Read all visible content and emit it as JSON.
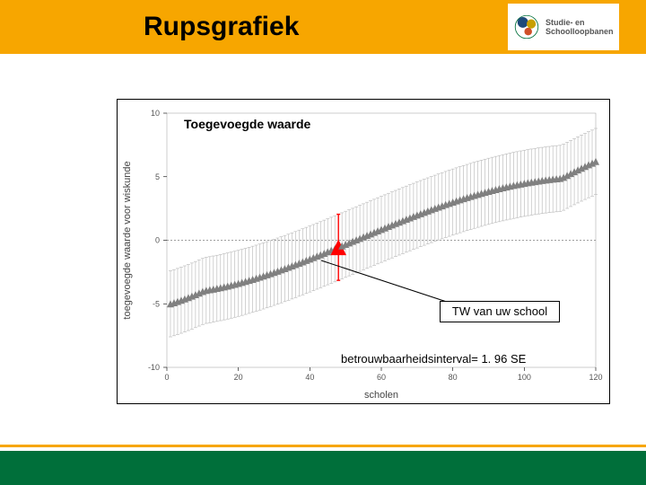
{
  "header": {
    "title": "Rupsgrafiek",
    "logo_line1": "Studie- en",
    "logo_line2": "Schoolloopbanen",
    "bar_color": "#f7a600"
  },
  "chart": {
    "type": "caterpillar-errorbar",
    "inner_title": "Toegevoegde waarde",
    "xlabel": "scholen",
    "ylabel": "toegevoegde waarde voor wiskunde",
    "xlim": [
      0,
      120
    ],
    "ylim": [
      -10,
      10
    ],
    "xtick_step": 20,
    "ytick_step": 5,
    "axis_label_fontsize": 11,
    "tick_fontsize": 9,
    "n_points": 120,
    "point_color": "#808080",
    "errorbar_color": "#bfbfbf",
    "highlight_index": 47,
    "highlight_color": "#ff0000",
    "zero_line_color": "#808080",
    "marker": "triangle",
    "marker_size": 4,
    "errorbar_halfwidth": 2.6,
    "background_color": "#ffffff",
    "border_color": "#000000"
  },
  "annotations": {
    "tw_box": "TW van uw school",
    "interval": "betrouwbaarheidsinterval= 1. 96 SE"
  },
  "footer": {
    "green": "#006f3a",
    "white": "#ffffff",
    "yellow": "#f7a600"
  }
}
